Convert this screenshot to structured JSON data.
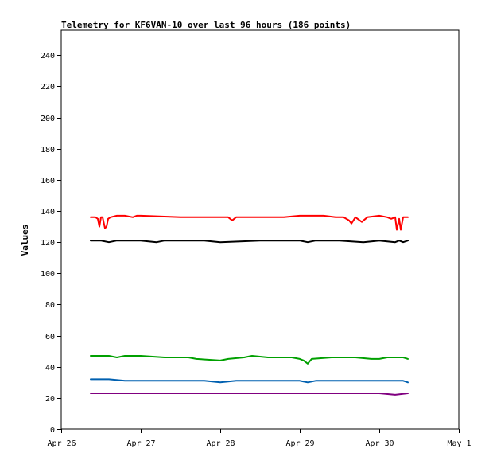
{
  "chart_data": {
    "type": "line",
    "title": "Telemetry for KF6VAN-10 over last 96 hours (186 points)",
    "xlabel": "",
    "ylabel": "Values",
    "xlim": [
      0,
      5
    ],
    "x_tick_labels": [
      "Apr 26",
      "Apr 27",
      "Apr 28",
      "Apr 29",
      "Apr 30",
      "May 1"
    ],
    "ylim": [
      0,
      256
    ],
    "y_ticks": [
      0,
      20,
      40,
      60,
      80,
      100,
      120,
      140,
      160,
      180,
      200,
      220,
      240
    ],
    "grid": false,
    "legend": "none",
    "series": [
      {
        "color": "#ff0000",
        "points": [
          [
            0.37,
            136
          ],
          [
            0.43,
            136
          ],
          [
            0.46,
            135
          ],
          [
            0.48,
            130
          ],
          [
            0.5,
            136
          ],
          [
            0.52,
            136
          ],
          [
            0.55,
            129
          ],
          [
            0.57,
            130
          ],
          [
            0.59,
            135
          ],
          [
            0.62,
            136
          ],
          [
            0.7,
            137
          ],
          [
            0.8,
            137
          ],
          [
            0.9,
            136
          ],
          [
            0.95,
            137
          ],
          [
            1.0,
            137
          ],
          [
            1.5,
            136
          ],
          [
            1.8,
            136
          ],
          [
            2.0,
            136
          ],
          [
            2.1,
            136
          ],
          [
            2.15,
            134
          ],
          [
            2.2,
            136
          ],
          [
            2.5,
            136
          ],
          [
            2.8,
            136
          ],
          [
            3.0,
            137
          ],
          [
            3.3,
            137
          ],
          [
            3.45,
            136
          ],
          [
            3.55,
            136
          ],
          [
            3.62,
            134
          ],
          [
            3.65,
            132
          ],
          [
            3.7,
            136
          ],
          [
            3.78,
            133
          ],
          [
            3.85,
            136
          ],
          [
            4.0,
            137
          ],
          [
            4.1,
            136
          ],
          [
            4.15,
            135
          ],
          [
            4.2,
            136
          ],
          [
            4.22,
            128
          ],
          [
            4.25,
            135
          ],
          [
            4.27,
            128
          ],
          [
            4.3,
            136
          ],
          [
            4.36,
            136
          ]
        ]
      },
      {
        "color": "#000000",
        "points": [
          [
            0.37,
            121
          ],
          [
            0.5,
            121
          ],
          [
            0.6,
            120
          ],
          [
            0.7,
            121
          ],
          [
            1.0,
            121
          ],
          [
            1.2,
            120
          ],
          [
            1.3,
            121
          ],
          [
            1.5,
            121
          ],
          [
            1.8,
            121
          ],
          [
            2.0,
            120
          ],
          [
            2.5,
            121
          ],
          [
            2.8,
            121
          ],
          [
            3.0,
            121
          ],
          [
            3.1,
            120
          ],
          [
            3.2,
            121
          ],
          [
            3.5,
            121
          ],
          [
            3.8,
            120
          ],
          [
            4.0,
            121
          ],
          [
            4.2,
            120
          ],
          [
            4.25,
            121
          ],
          [
            4.3,
            120
          ],
          [
            4.36,
            121
          ]
        ]
      },
      {
        "color": "#00a000",
        "points": [
          [
            0.37,
            47
          ],
          [
            0.6,
            47
          ],
          [
            0.7,
            46
          ],
          [
            0.8,
            47
          ],
          [
            1.0,
            47
          ],
          [
            1.3,
            46
          ],
          [
            1.6,
            46
          ],
          [
            1.7,
            45
          ],
          [
            2.0,
            44
          ],
          [
            2.1,
            45
          ],
          [
            2.3,
            46
          ],
          [
            2.4,
            47
          ],
          [
            2.6,
            46
          ],
          [
            2.9,
            46
          ],
          [
            3.0,
            45
          ],
          [
            3.05,
            44
          ],
          [
            3.1,
            42
          ],
          [
            3.15,
            45
          ],
          [
            3.4,
            46
          ],
          [
            3.7,
            46
          ],
          [
            3.9,
            45
          ],
          [
            4.0,
            45
          ],
          [
            4.1,
            46
          ],
          [
            4.3,
            46
          ],
          [
            4.36,
            45
          ]
        ]
      },
      {
        "color": "#0060b0",
        "points": [
          [
            0.37,
            32
          ],
          [
            0.6,
            32
          ],
          [
            0.8,
            31
          ],
          [
            1.0,
            31
          ],
          [
            1.3,
            31
          ],
          [
            1.6,
            31
          ],
          [
            1.8,
            31
          ],
          [
            2.0,
            30
          ],
          [
            2.2,
            31
          ],
          [
            2.5,
            31
          ],
          [
            2.8,
            31
          ],
          [
            3.0,
            31
          ],
          [
            3.1,
            30
          ],
          [
            3.2,
            31
          ],
          [
            3.5,
            31
          ],
          [
            3.8,
            31
          ],
          [
            4.0,
            31
          ],
          [
            4.2,
            31
          ],
          [
            4.3,
            31
          ],
          [
            4.36,
            30
          ]
        ]
      },
      {
        "color": "#800080",
        "points": [
          [
            0.37,
            23
          ],
          [
            0.6,
            23
          ],
          [
            0.8,
            23
          ],
          [
            1.0,
            23
          ],
          [
            1.5,
            23
          ],
          [
            2.0,
            23
          ],
          [
            2.5,
            23
          ],
          [
            3.0,
            23
          ],
          [
            3.5,
            23
          ],
          [
            4.0,
            23
          ],
          [
            4.2,
            22
          ],
          [
            4.36,
            23
          ]
        ]
      }
    ]
  }
}
